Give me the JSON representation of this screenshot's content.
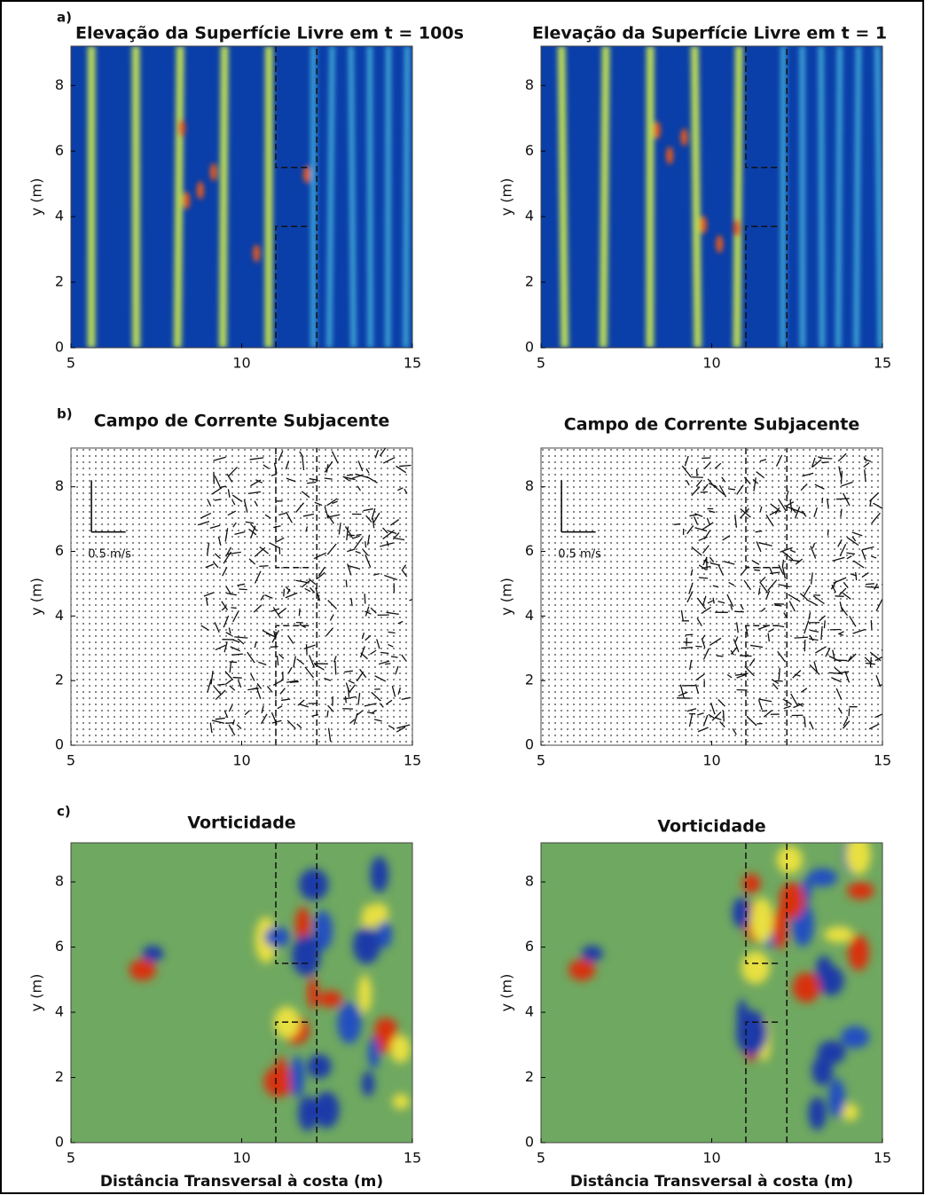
{
  "rows": [
    {
      "label": "a)",
      "panels": [
        {
          "title": "Elevação da Superfície Livre em t = 100s"
        },
        {
          "title": "Elevação da Superfície Livre em t = 1"
        }
      ]
    },
    {
      "label": "b)",
      "panels": [
        {
          "title": "Campo de Corrente Subjacente",
          "annotation": "0.5 m/s"
        },
        {
          "title": "Campo de Corrente Subjacente",
          "annotation": "0.5 m/s"
        }
      ]
    },
    {
      "label": "c)",
      "panels": [
        {
          "title": "Vorticidade"
        },
        {
          "title": "Vorticidade"
        }
      ]
    }
  ],
  "x_ticks": [
    5,
    10,
    15
  ],
  "y_ticks": [
    0,
    2,
    4,
    6,
    8
  ],
  "y_label": "y (m)",
  "x_label": "Distância Transversal à costa (m)"
}
